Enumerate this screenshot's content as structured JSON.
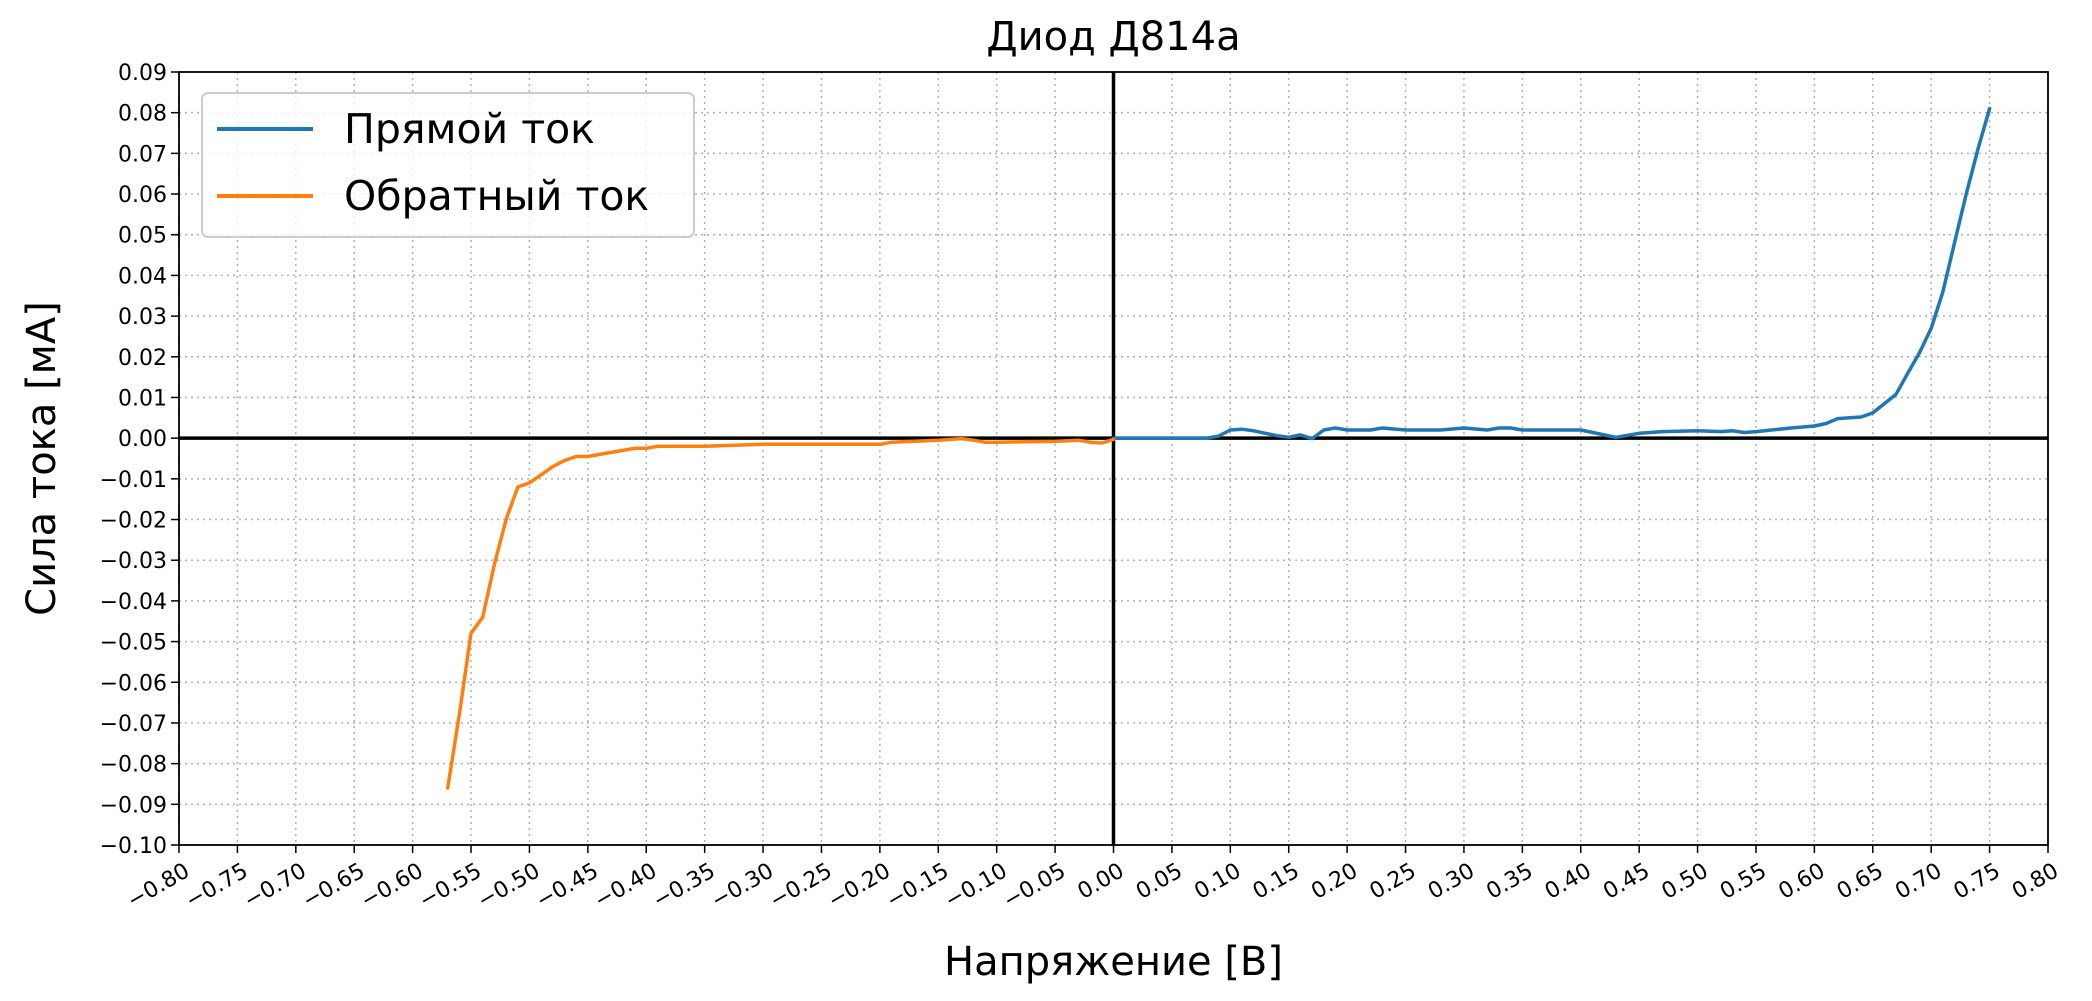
{
  "chart_data": {
    "type": "line",
    "title": "Диод Д814а",
    "xlabel": "Напряжение [В]",
    "ylabel": "Сила тока [мА]",
    "xlim": [
      -0.8,
      0.8
    ],
    "ylim": [
      -0.1,
      0.09
    ],
    "x_ticks": [
      "−0.80",
      "−0.75",
      "−0.70",
      "−0.65",
      "−0.60",
      "−0.55",
      "−0.50",
      "−0.45",
      "−0.40",
      "−0.35",
      "−0.30",
      "−0.25",
      "−0.20",
      "−0.15",
      "−0.10",
      "−0.05",
      "0.00",
      "0.05",
      "0.10",
      "0.15",
      "0.20",
      "0.25",
      "0.30",
      "0.35",
      "0.40",
      "0.45",
      "0.50",
      "0.55",
      "0.60",
      "0.65",
      "0.70",
      "0.75",
      "0.80"
    ],
    "y_ticks": [
      "0.09",
      "0.08",
      "0.07",
      "0.06",
      "0.05",
      "0.04",
      "0.03",
      "0.02",
      "0.01",
      "0.00",
      "−0.01",
      "−0.02",
      "−0.03",
      "−0.04",
      "−0.05",
      "−0.06",
      "−0.07",
      "−0.08",
      "−0.09",
      "−0.10"
    ],
    "grid": true,
    "grid_style": "dotted",
    "legend_position": "upper-left",
    "zero_lines": true,
    "series": [
      {
        "name": "Прямой ток",
        "color": "#1f77b4",
        "x": [
          0.0,
          0.02,
          0.05,
          0.08,
          0.09,
          0.1,
          0.11,
          0.12,
          0.13,
          0.14,
          0.15,
          0.16,
          0.17,
          0.18,
          0.19,
          0.2,
          0.22,
          0.23,
          0.25,
          0.28,
          0.3,
          0.32,
          0.33,
          0.34,
          0.35,
          0.37,
          0.4,
          0.42,
          0.43,
          0.45,
          0.47,
          0.5,
          0.52,
          0.53,
          0.54,
          0.55,
          0.57,
          0.58,
          0.6,
          0.61,
          0.62,
          0.64,
          0.65,
          0.67,
          0.68,
          0.69,
          0.7,
          0.71,
          0.72,
          0.73,
          0.74,
          0.75
        ],
        "y": [
          0.0,
          0.0,
          0.0,
          0.0,
          0.0005,
          0.002,
          0.0022,
          0.0018,
          0.0012,
          0.0006,
          0.0002,
          0.0008,
          -0.0001,
          0.002,
          0.0025,
          0.002,
          0.002,
          0.0025,
          0.002,
          0.002,
          0.0025,
          0.002,
          0.0025,
          0.0025,
          0.002,
          0.002,
          0.002,
          0.0008,
          0.0002,
          0.0012,
          0.0016,
          0.0018,
          0.0016,
          0.0018,
          0.0014,
          0.0016,
          0.0022,
          0.0025,
          0.003,
          0.0036,
          0.0048,
          0.0052,
          0.0062,
          0.0108,
          0.016,
          0.021,
          0.027,
          0.036,
          0.048,
          0.06,
          0.071,
          0.081
        ]
      },
      {
        "name": "Обратный ток",
        "color": "#ff7f0e",
        "x": [
          -0.57,
          -0.56,
          -0.55,
          -0.54,
          -0.53,
          -0.52,
          -0.51,
          -0.5,
          -0.49,
          -0.48,
          -0.47,
          -0.46,
          -0.45,
          -0.44,
          -0.43,
          -0.42,
          -0.41,
          -0.4,
          -0.39,
          -0.38,
          -0.35,
          -0.3,
          -0.25,
          -0.2,
          -0.19,
          -0.15,
          -0.13,
          -0.12,
          -0.11,
          -0.1,
          -0.05,
          -0.03,
          -0.02,
          -0.01,
          0.0
        ],
        "y": [
          -0.086,
          -0.068,
          -0.048,
          -0.044,
          -0.031,
          -0.02,
          -0.012,
          -0.011,
          -0.009,
          -0.007,
          -0.0055,
          -0.0045,
          -0.0045,
          -0.004,
          -0.0035,
          -0.003,
          -0.0025,
          -0.0025,
          -0.002,
          -0.002,
          -0.002,
          -0.0015,
          -0.0015,
          -0.0015,
          -0.001,
          -0.0005,
          -0.0001,
          -0.0005,
          -0.001,
          -0.001,
          -0.0008,
          -0.0005,
          -0.001,
          -0.0012,
          -0.0003
        ]
      }
    ]
  }
}
